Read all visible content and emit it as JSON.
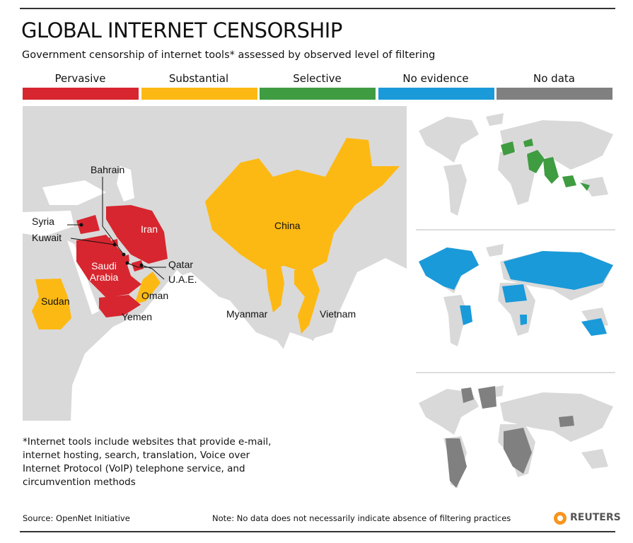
{
  "header": {
    "title": "GLOBAL INTERNET CENSORSHIP",
    "subtitle": "Government censorship of internet tools* assessed by observed level of filtering"
  },
  "legend": [
    {
      "label": "Pervasive",
      "color": "#d7262f"
    },
    {
      "label": "Substantial",
      "color": "#fdb913"
    },
    {
      "label": "Selective",
      "color": "#3f9c41"
    },
    {
      "label": "No evidence",
      "color": "#1a9ad9"
    },
    {
      "label": "No data",
      "color": "#808080"
    }
  ],
  "map": {
    "countries": [
      {
        "label": "Bahrain",
        "color": "#d7262f"
      },
      {
        "label": "Syria",
        "color": "#d7262f"
      },
      {
        "label": "Kuwait",
        "color": "#d7262f"
      },
      {
        "label": "Iran",
        "color": "#d7262f"
      },
      {
        "label": "Saudi Arabia",
        "color": "#d7262f"
      },
      {
        "label": "Qatar",
        "color": "#d7262f"
      },
      {
        "label": "U.A.E.",
        "color": "#d7262f"
      },
      {
        "label": "Oman",
        "color": "#fdb913"
      },
      {
        "label": "Yemen",
        "color": "#d7262f"
      },
      {
        "label": "Sudan",
        "color": "#fdb913"
      },
      {
        "label": "China",
        "color": "#fdb913"
      },
      {
        "label": "Myanmar",
        "color": "#fdb913"
      },
      {
        "label": "Vietnam",
        "color": "#fdb913"
      }
    ]
  },
  "footnote": "*Internet tools include websites that provide e-mail, internet hosting, search, translation, Voice over Internet Protocol (VoIP) telephone service, and circumvention methods",
  "footer": {
    "source": "Source: OpenNet Initiative",
    "note": "Note: No data does not necessarily indicate absence of filtering practices",
    "brand": "REUTERS"
  }
}
